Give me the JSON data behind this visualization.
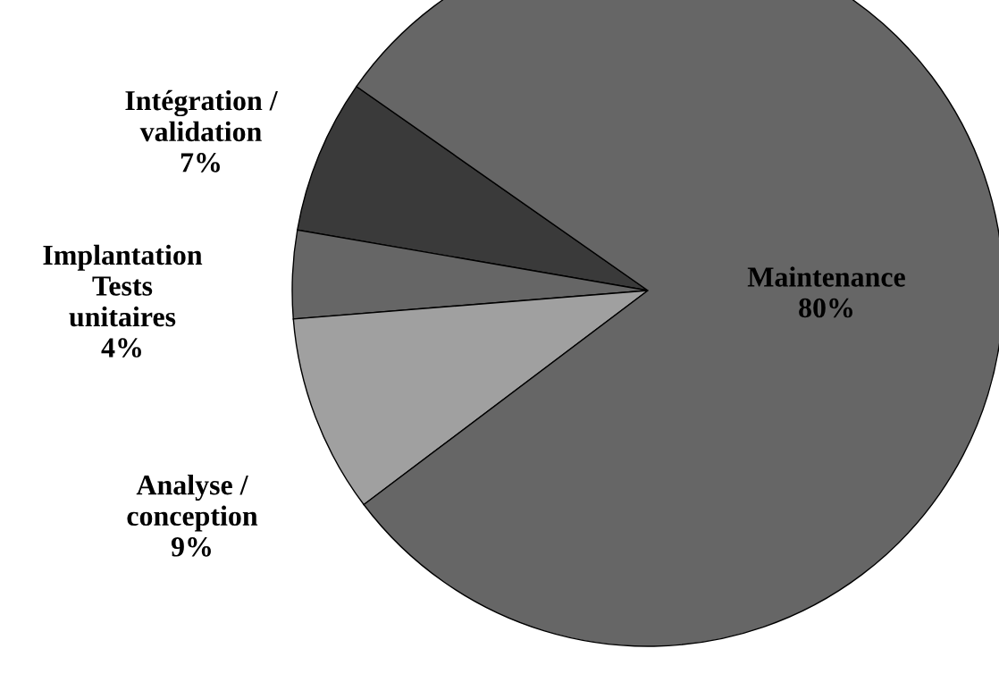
{
  "chart_data": {
    "type": "pie",
    "categories": [
      "Intégration /\nvalidation",
      "Implantation\nTests\nunitaires",
      "Analyse /\nconception",
      "Maintenance"
    ],
    "values": [
      7,
      4,
      9,
      80
    ],
    "value_labels": [
      "7%",
      "4%",
      "9%",
      "80%"
    ],
    "colors": [
      "#3a3a3a",
      "#666666",
      "#a0a0a0",
      "#666666"
    ]
  }
}
